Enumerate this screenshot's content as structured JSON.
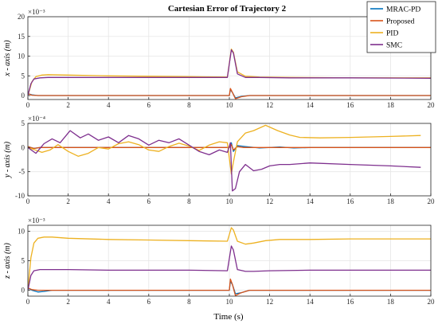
{
  "figure": {
    "title": "Cartesian Error of Trajectory 2",
    "xlabel": "Time (s)"
  },
  "colors": {
    "MRAC-PD": "#0072BD",
    "Proposed": "#D95319",
    "PID": "#EDB120",
    "SMC": "#7E2F8E",
    "grid": "#e6e6e6",
    "axis": "#262626"
  },
  "chart_data": [
    {
      "type": "line",
      "ylabel": "x - axis (m)",
      "exponent": "×10⁻³",
      "xlim": [
        0,
        20
      ],
      "ylim": [
        -1,
        20
      ],
      "xticks": [
        0,
        2,
        4,
        6,
        8,
        10,
        12,
        14,
        16,
        18,
        20
      ],
      "yticks": [
        0,
        5,
        10,
        15,
        20
      ],
      "legend": {
        "placement": "top-right",
        "entries": [
          "MRAC-PD",
          "Proposed",
          "PID",
          "SMC"
        ]
      },
      "series": [
        {
          "name": "MRAC-PD",
          "x": [
            0,
            0.2,
            0.5,
            1,
            2,
            10.0,
            10.05,
            10.15,
            10.3,
            10.6,
            11,
            12,
            13,
            20
          ],
          "y": [
            0.5,
            0.2,
            0.0,
            0.0,
            0.0,
            0.0,
            1.5,
            0.8,
            -0.6,
            -0.2,
            0.0,
            0.0,
            0.0,
            0.0
          ]
        },
        {
          "name": "Proposed",
          "x": [
            0,
            0.2,
            0.5,
            1,
            2,
            10.0,
            10.05,
            10.15,
            10.3,
            10.6,
            11,
            12,
            20
          ],
          "y": [
            0.5,
            0.1,
            0.0,
            0.0,
            0.0,
            0.0,
            1.8,
            0.8,
            -0.8,
            -0.3,
            0.0,
            0.0,
            0.0
          ]
        },
        {
          "name": "PID",
          "x": [
            0,
            0.2,
            0.4,
            0.7,
            1,
            2,
            4,
            6,
            8,
            9.9,
            10.1,
            10.2,
            10.4,
            10.8,
            11.5,
            13,
            16,
            20
          ],
          "y": [
            0.0,
            3.5,
            4.8,
            5.2,
            5.3,
            5.2,
            5.0,
            4.9,
            4.8,
            4.7,
            11.8,
            11.0,
            6.0,
            4.9,
            4.7,
            4.6,
            4.5,
            4.5
          ]
        },
        {
          "name": "SMC",
          "x": [
            0,
            0.15,
            0.3,
            0.6,
            1,
            2,
            4,
            6,
            8,
            9.9,
            10.1,
            10.2,
            10.4,
            10.8,
            11.5,
            13,
            16,
            20
          ],
          "y": [
            0.0,
            3.0,
            4.2,
            4.5,
            4.6,
            4.6,
            4.6,
            4.6,
            4.6,
            4.6,
            11.6,
            10.8,
            5.5,
            4.6,
            4.6,
            4.5,
            4.5,
            4.4
          ]
        }
      ]
    },
    {
      "type": "line",
      "ylabel": "y - axis (m)",
      "exponent": "×10⁻⁴",
      "xlim": [
        0,
        20
      ],
      "ylim": [
        -10,
        5
      ],
      "xticks": [
        0,
        2,
        4,
        6,
        8,
        10,
        12,
        14,
        16,
        18,
        20
      ],
      "yticks": [
        -10,
        -5,
        0,
        5
      ],
      "series": [
        {
          "name": "MRAC-PD",
          "x": [
            0,
            0.3,
            0.6,
            1,
            2,
            10.0,
            10.1,
            10.2,
            10.4,
            10.8,
            11.5,
            12.5,
            13.2,
            14,
            20
          ],
          "y": [
            0.2,
            -0.2,
            0.0,
            0.0,
            0.0,
            0.0,
            1.0,
            -0.8,
            0.4,
            0.2,
            -0.1,
            0.1,
            -0.1,
            0.0,
            0.0
          ]
        },
        {
          "name": "Proposed",
          "x": [
            0,
            0.3,
            0.6,
            1,
            2,
            10.0,
            10.1,
            10.2,
            10.4,
            10.7,
            11.5,
            20
          ],
          "y": [
            0.2,
            -0.2,
            0.0,
            0.0,
            0.0,
            0.0,
            0.6,
            -0.5,
            0.2,
            0.0,
            0.0,
            0.0
          ]
        },
        {
          "name": "PID",
          "x": [
            0,
            0.3,
            0.7,
            1.1,
            1.5,
            2,
            2.5,
            3,
            3.5,
            4,
            4.5,
            5,
            5.5,
            6,
            6.5,
            7,
            7.5,
            8,
            8.5,
            9,
            9.5,
            9.9,
            10.1,
            10.2,
            10.4,
            10.8,
            11.2,
            11.8,
            12.4,
            13,
            13.5,
            14.5,
            16,
            18,
            19.5
          ],
          "y": [
            0.0,
            -0.4,
            -1.0,
            -0.5,
            0.6,
            -0.8,
            -1.8,
            -1.2,
            0.0,
            -0.3,
            0.8,
            1.2,
            0.6,
            -0.5,
            -0.8,
            0.2,
            0.9,
            0.3,
            -0.6,
            0.5,
            1.2,
            1.0,
            -5.5,
            -3.0,
            1.2,
            3.0,
            3.5,
            4.6,
            3.5,
            2.6,
            2.1,
            2.0,
            2.1,
            2.3,
            2.5
          ]
        },
        {
          "name": "SMC",
          "x": [
            0,
            0.4,
            0.8,
            1.2,
            1.6,
            2.1,
            2.6,
            3,
            3.5,
            4,
            4.5,
            5,
            5.5,
            6,
            6.5,
            7,
            7.5,
            8,
            8.5,
            9,
            9.5,
            9.9,
            10.05,
            10.15,
            10.3,
            10.5,
            10.8,
            11.2,
            11.6,
            12,
            12.5,
            13,
            14,
            16,
            18,
            19.5
          ],
          "y": [
            0.0,
            -1.2,
            0.8,
            1.8,
            1.0,
            3.5,
            2.0,
            2.8,
            1.5,
            2.2,
            1.0,
            2.5,
            1.8,
            0.5,
            1.5,
            1.0,
            1.8,
            0.5,
            -0.8,
            -1.5,
            -0.5,
            -1.0,
            1.0,
            -9.0,
            -8.5,
            -5.0,
            -3.5,
            -4.8,
            -4.5,
            -3.8,
            -3.5,
            -3.5,
            -3.2,
            -3.5,
            -3.8,
            -4.1
          ]
        }
      ]
    },
    {
      "type": "line",
      "ylabel": "z - axis (m)",
      "exponent": "×10⁻³",
      "xlim": [
        0,
        20
      ],
      "ylim": [
        -1,
        11
      ],
      "xticks": [
        0,
        2,
        4,
        6,
        8,
        10,
        12,
        14,
        16,
        18,
        20
      ],
      "yticks": [
        0,
        5,
        10
      ],
      "series": [
        {
          "name": "MRAC-PD",
          "x": [
            0,
            0.2,
            0.5,
            0.8,
            1.2,
            2,
            10.0,
            10.05,
            10.15,
            10.3,
            10.6,
            11,
            12,
            13,
            20
          ],
          "y": [
            0.4,
            0.0,
            -0.3,
            -0.2,
            0.0,
            0.0,
            0.0,
            1.5,
            1.0,
            -0.6,
            -0.4,
            0.0,
            0.0,
            0.0,
            0.0
          ]
        },
        {
          "name": "Proposed",
          "x": [
            0,
            0.2,
            0.5,
            1,
            2,
            10.0,
            10.05,
            10.15,
            10.3,
            10.6,
            11,
            12,
            20
          ],
          "y": [
            0.4,
            0.1,
            0.0,
            0.0,
            0.0,
            0.0,
            1.9,
            1.0,
            -0.9,
            -0.4,
            0.0,
            0.0,
            0.0
          ]
        },
        {
          "name": "PID",
          "x": [
            0,
            0.15,
            0.3,
            0.5,
            0.8,
            1.2,
            2,
            4,
            6,
            8,
            9.9,
            10.1,
            10.2,
            10.4,
            10.8,
            11.2,
            11.8,
            12.5,
            14,
            16,
            20
          ],
          "y": [
            0.0,
            5.5,
            8.0,
            8.8,
            9.0,
            9.0,
            8.8,
            8.6,
            8.5,
            8.4,
            8.3,
            10.6,
            10.2,
            8.3,
            7.8,
            8.0,
            8.4,
            8.6,
            8.6,
            8.7,
            8.7
          ]
        },
        {
          "name": "SMC",
          "x": [
            0,
            0.15,
            0.3,
            0.6,
            1,
            2,
            4,
            6,
            8,
            9.9,
            10.1,
            10.2,
            10.4,
            10.8,
            11.2,
            12,
            14,
            16,
            20
          ],
          "y": [
            0.0,
            2.5,
            3.3,
            3.5,
            3.5,
            3.5,
            3.4,
            3.4,
            3.4,
            3.3,
            7.5,
            6.8,
            3.5,
            3.2,
            3.2,
            3.3,
            3.4,
            3.4,
            3.4
          ]
        }
      ]
    }
  ]
}
